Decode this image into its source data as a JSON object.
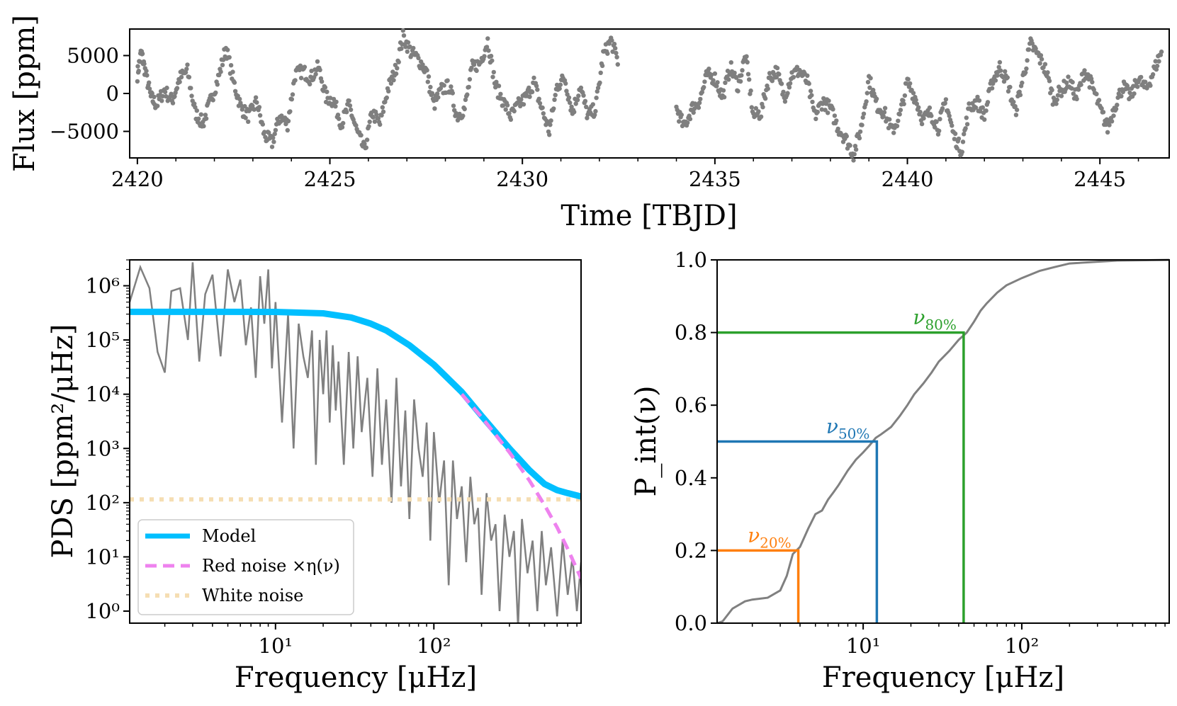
{
  "chart_data": [
    {
      "type": "scatter",
      "xlabel": "Time [TBJD]",
      "ylabel": "Flux [ppm]",
      "xlim": [
        2419.8,
        2446.8
      ],
      "ylim": [
        -8500,
        8500
      ],
      "xticks": [
        2420,
        2425,
        2430,
        2435,
        2440,
        2445
      ],
      "xtick_labels": [
        "2420",
        "2425",
        "2430",
        "2435",
        "2440",
        "2445"
      ],
      "yticks": [
        5000,
        0,
        -5000
      ],
      "ytick_labels": [
        "5000",
        "0",
        "−5000"
      ],
      "color": "#7f7f7f",
      "gap": [
        2432.6,
        2433.9
      ],
      "series": [
        {
          "x": [
            2420.0,
            2420.1,
            2420.2,
            2420.35,
            2420.5,
            2420.7,
            2420.9,
            2421.1,
            2421.3,
            2421.5,
            2421.7,
            2421.9,
            2422.1,
            2422.3,
            2422.5,
            2422.7,
            2422.9,
            2423.1,
            2423.3,
            2423.5,
            2423.7,
            2423.9,
            2424.1,
            2424.3,
            2424.5,
            2424.7,
            2424.9,
            2425.1,
            2425.3,
            2425.5,
            2425.7,
            2425.9,
            2426.1,
            2426.3,
            2426.5,
            2426.7,
            2426.9,
            2427.1,
            2427.3,
            2427.5,
            2427.7,
            2427.9,
            2428.1,
            2428.3,
            2428.5,
            2428.7,
            2428.9,
            2429.1,
            2429.3,
            2429.5,
            2429.7,
            2429.9,
            2430.1,
            2430.3,
            2430.5,
            2430.7,
            2430.9,
            2431.1,
            2431.3,
            2431.5,
            2431.7,
            2431.9,
            2432.1,
            2432.3,
            2432.5,
            2434.0,
            2434.2,
            2434.4,
            2434.6,
            2434.8,
            2435.0,
            2435.2,
            2435.4,
            2435.6,
            2435.8,
            2436.0,
            2436.2,
            2436.4,
            2436.6,
            2436.8,
            2437.0,
            2437.2,
            2437.4,
            2437.6,
            2437.8,
            2438.0,
            2438.2,
            2438.4,
            2438.6,
            2438.8,
            2439.0,
            2439.2,
            2439.4,
            2439.6,
            2439.8,
            2440.0,
            2440.2,
            2440.4,
            2440.6,
            2440.8,
            2441.0,
            2441.2,
            2441.4,
            2441.6,
            2441.8,
            2442.0,
            2442.2,
            2442.4,
            2442.6,
            2442.8,
            2443.0,
            2443.2,
            2443.4,
            2443.6,
            2443.8,
            2444.0,
            2444.2,
            2444.4,
            2444.6,
            2444.8,
            2445.0,
            2445.2,
            2445.4,
            2445.6,
            2445.8,
            2446.0,
            2446.2,
            2446.4,
            2446.6
          ],
          "y": [
            2500,
            5500,
            3000,
            -500,
            -1500,
            500,
            -1000,
            2000,
            3000,
            -2500,
            -4000,
            -1000,
            2000,
            6000,
            1500,
            -2000,
            -3000,
            -1000,
            -5500,
            -6500,
            -3000,
            -4000,
            2500,
            3000,
            2000,
            3500,
            -500,
            -1000,
            -4000,
            -1500,
            -5000,
            -7500,
            -2500,
            -4000,
            500,
            3000,
            7500,
            5500,
            4500,
            3000,
            -1500,
            500,
            1000,
            -3000,
            -2000,
            3500,
            4000,
            7000,
            1000,
            -1000,
            -3000,
            -1500,
            -500,
            1500,
            -2000,
            -5000,
            1000,
            2000,
            -2500,
            1000,
            -3000,
            -2000,
            5000,
            7000,
            4000,
            -2000,
            -4500,
            -2000,
            -1000,
            2500,
            2000,
            -500,
            3500,
            1000,
            5000,
            -3000,
            -2500,
            2000,
            3000,
            -500,
            2500,
            3000,
            1500,
            -3000,
            -1000,
            -2000,
            -4500,
            -6000,
            -8000,
            -4500,
            2000,
            -1500,
            -2500,
            -5000,
            -3000,
            1500,
            -500,
            -3500,
            -2500,
            -4500,
            -1000,
            -5500,
            -7500,
            -2000,
            -1000,
            -3000,
            1500,
            3500,
            1500,
            -2500,
            2000,
            6500,
            5000,
            3000,
            -1000,
            500,
            1500,
            -500,
            3000,
            1000,
            -2000,
            -4500,
            -1500,
            1000,
            -500,
            2000,
            500,
            3000,
            5500
          ]
        }
      ]
    },
    {
      "type": "line",
      "xscale": "log",
      "yscale": "log",
      "xlabel": "Frequency [μHz]",
      "ylabel": "PDS [ppm²/μHz]",
      "xlim": [
        1.2,
        850
      ],
      "ylim": [
        0.6,
        3000000
      ],
      "xtick_labels": [
        "10¹",
        "10²"
      ],
      "ytick_labels": [
        "10⁰",
        "10¹",
        "10²",
        "10³",
        "10⁴",
        "10⁵",
        "10⁶"
      ],
      "legend_position": "lower-left",
      "series": [
        {
          "name": "Model",
          "color": "#00bfff",
          "style": "solid",
          "x": [
            1.2,
            2,
            5,
            10,
            20,
            30,
            40,
            50,
            70,
            100,
            150,
            200,
            300,
            400,
            500,
            600,
            700,
            850
          ],
          "y": [
            330000,
            330000,
            330000,
            329000,
            310000,
            260000,
            200000,
            150000,
            80000,
            35000,
            11000,
            4000,
            1000,
            400,
            220,
            170,
            150,
            130
          ]
        },
        {
          "name": "Red noise ×η(ν)",
          "color": "#ee82ee",
          "style": "dashed",
          "x": [
            150,
            200,
            300,
            400,
            500,
            600,
            700,
            850
          ],
          "y": [
            10000,
            3800,
            850,
            260,
            90,
            35,
            14,
            4
          ]
        },
        {
          "name": "White noise",
          "color": "#f5deb3",
          "style": "dotted",
          "x": [
            1.2,
            850
          ],
          "y": [
            115,
            115
          ]
        },
        {
          "name": "",
          "color": "#808080",
          "style": "solid",
          "x": [
            1.2,
            1.4,
            1.6,
            1.8,
            2.0,
            2.2,
            2.5,
            2.8,
            3.0,
            3.3,
            3.6,
            4.0,
            4.5,
            5.0,
            5.5,
            6.0,
            6.5,
            7.0,
            7.5,
            8.0,
            8.5,
            9.0,
            9.5,
            10,
            11,
            12,
            13,
            14,
            15,
            16,
            17,
            18,
            19,
            20,
            21,
            22,
            23,
            24,
            25,
            27,
            29,
            31,
            33,
            35,
            38,
            41,
            44,
            47,
            50,
            54,
            58,
            62,
            66,
            70,
            75,
            80,
            85,
            90,
            95,
            100,
            108,
            116,
            124,
            132,
            140,
            150,
            160,
            170,
            180,
            190,
            200,
            215,
            230,
            245,
            260,
            280,
            300,
            320,
            340,
            360,
            390,
            420,
            450,
            480,
            510,
            550,
            600,
            650,
            700,
            750,
            800,
            850
          ],
          "y": [
            500000,
            2200000,
            900000,
            60000,
            25000,
            800000,
            900000,
            100000,
            2700000,
            40000,
            700000,
            1600000,
            50000,
            2000000,
            500000,
            1300000,
            80000,
            400000,
            20000,
            1500000,
            200000,
            2000000,
            30000,
            500000,
            3000,
            300000,
            1000,
            200000,
            50000,
            20000,
            150000,
            500,
            100000,
            10000,
            150000,
            3000,
            80000,
            5000,
            40000,
            500,
            60000,
            1000,
            50000,
            2000,
            20000,
            300,
            30000,
            500,
            8000,
            100,
            20000,
            200,
            5000,
            50,
            8000,
            1000,
            300,
            3000,
            20,
            2000,
            100,
            600,
            3,
            600,
            50,
            200,
            8,
            300,
            40,
            80,
            2,
            150,
            20,
            40,
            1,
            60,
            10,
            30,
            0.5,
            50,
            5,
            20,
            1,
            30,
            3,
            15,
            0.8,
            20,
            2,
            10,
            1,
            8
          ]
        }
      ]
    },
    {
      "type": "line",
      "xscale": "log",
      "xlabel": "Frequency [μHz]",
      "ylabel": "P_int(ν)",
      "xlim": [
        1.2,
        850
      ],
      "ylim": [
        0,
        1
      ],
      "xtick_labels": [
        "10¹",
        "10²"
      ],
      "ytick_labels": [
        "0.0",
        "0.2",
        "0.4",
        "0.6",
        "0.8",
        "1.0"
      ],
      "series": [
        {
          "name": "",
          "color": "#808080",
          "x": [
            1.2,
            1.3,
            1.5,
            1.8,
            2.0,
            2.5,
            3.0,
            3.3,
            3.6,
            4.0,
            4.5,
            5.0,
            5.5,
            6.0,
            6.5,
            7.0,
            8.0,
            9.0,
            10,
            11,
            12,
            13,
            15,
            17,
            19,
            21,
            24,
            27,
            30,
            35,
            40,
            45,
            50,
            55,
            60,
            70,
            80,
            100,
            130,
            160,
            200,
            300,
            400,
            600,
            850
          ],
          "y": [
            0,
            0.005,
            0.04,
            0.06,
            0.065,
            0.07,
            0.09,
            0.13,
            0.19,
            0.21,
            0.26,
            0.3,
            0.31,
            0.34,
            0.36,
            0.38,
            0.42,
            0.45,
            0.47,
            0.49,
            0.51,
            0.52,
            0.54,
            0.57,
            0.6,
            0.63,
            0.66,
            0.69,
            0.72,
            0.75,
            0.78,
            0.8,
            0.83,
            0.86,
            0.88,
            0.91,
            0.93,
            0.95,
            0.97,
            0.98,
            0.99,
            0.995,
            0.998,
            0.999,
            1.0
          ]
        }
      ],
      "annotations": [
        {
          "label_main": "ν",
          "label_sub": "20%",
          "nu": 3.9,
          "p": 0.2,
          "color": "#ff7f0e"
        },
        {
          "label_main": "ν",
          "label_sub": "50%",
          "nu": 12.2,
          "p": 0.5,
          "color": "#1f77b4"
        },
        {
          "label_main": "ν",
          "label_sub": "80%",
          "nu": 43.0,
          "p": 0.8,
          "color": "#2ca02c"
        }
      ]
    }
  ]
}
